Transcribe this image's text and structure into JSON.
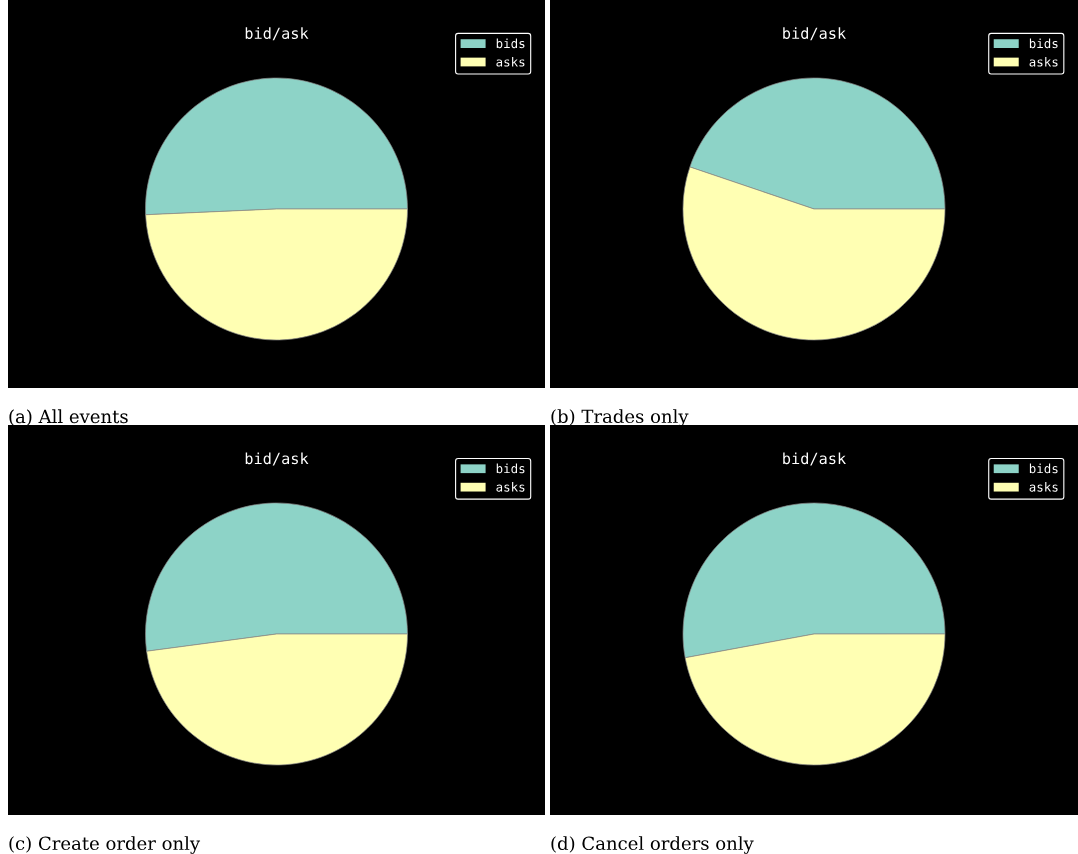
{
  "chart_data": [
    {
      "type": "pie",
      "title": "bid/ask",
      "categories": [
        "bids",
        "asks"
      ],
      "values": [
        50.7,
        49.3
      ],
      "colors": [
        "#8dd3c7",
        "#ffffb3"
      ],
      "legend": "top right",
      "annotations": [
        "(a) All events"
      ]
    },
    {
      "type": "pie",
      "title": "bid/ask",
      "categories": [
        "bids",
        "asks"
      ],
      "values": [
        44.8,
        55.2
      ],
      "colors": [
        "#8dd3c7",
        "#ffffb3"
      ],
      "legend": "top right",
      "annotations": [
        "(b) Trades only"
      ]
    },
    {
      "type": "pie",
      "title": "bid/ask",
      "categories": [
        "bids",
        "asks"
      ],
      "values": [
        52.1,
        47.9
      ],
      "colors": [
        "#8dd3c7",
        "#ffffb3"
      ],
      "legend": "top right",
      "annotations": [
        "(c) Create order only"
      ]
    },
    {
      "type": "pie",
      "title": "bid/ask",
      "categories": [
        "bids",
        "asks"
      ],
      "values": [
        52.9,
        47.1
      ],
      "colors": [
        "#8dd3c7",
        "#ffffb3"
      ],
      "legend": "top right",
      "annotations": [
        "(d) Cancel orders only"
      ]
    }
  ]
}
